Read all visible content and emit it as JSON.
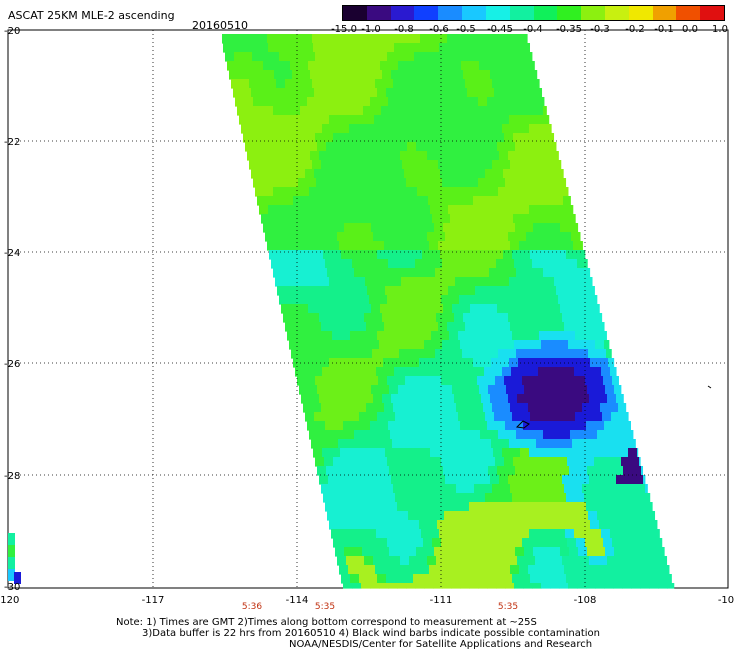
{
  "header": {
    "title": "ASCAT 25KM MLE-2 ascending",
    "date": "20160510"
  },
  "colorbar": {
    "colors": [
      "#1a0030",
      "#3a0a80",
      "#2a1ad0",
      "#1040ff",
      "#1a8cff",
      "#19c8ff",
      "#17f0e6",
      "#12f0a0",
      "#10f05a",
      "#30f020",
      "#8cf010",
      "#c8f010",
      "#f0e800",
      "#f0a000",
      "#f05000",
      "#e01010"
    ],
    "labels": [
      "-15.0",
      "-1.0",
      "-0.8",
      "-0.6",
      "-0.5",
      "-0.45",
      "-0.4",
      "-0.35",
      "-0.3",
      "-0.2",
      "-0.1",
      "0.0",
      "1.0"
    ]
  },
  "map": {
    "lat_labels": [
      "-20",
      "-22",
      "-24",
      "-26",
      "-28",
      "-30"
    ],
    "lon_labels": [
      "-120",
      "-117",
      "-114",
      "-111",
      "-108",
      "-10"
    ],
    "times": [
      "5:36",
      "5:35",
      "5:35"
    ]
  },
  "notes": {
    "line1": "Note: 1) Times are GMT 2)Times along bottom correspond to measurement at ~25S",
    "line2": "3)Data buffer is 22 hrs from 20160510 4) Black wind barbs indicate possible contamination",
    "line3": "NOAA/NESDIS/Center for Satellite Applications and Research"
  }
}
